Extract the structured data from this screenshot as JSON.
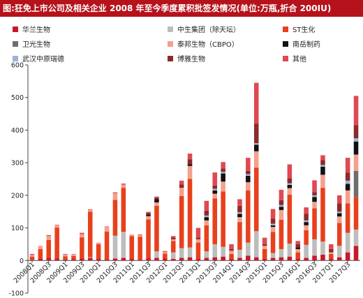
{
  "title": "图:狂免上市公司及相关企业 2008 年至今季度累积批签发情况(单位:万瓶,折合 200IU)",
  "colors": {
    "header_bg": "#b5121b"
  },
  "chart_data": {
    "type": "bar",
    "stacked": true,
    "title": "",
    "xlabel": "",
    "ylabel": "",
    "ylim": [
      -100,
      600
    ],
    "yticks": [
      -100,
      0,
      100,
      200,
      300,
      400,
      500,
      600
    ],
    "grid": false,
    "legend_position": "top",
    "categories": [
      "2008Q1",
      "2008Q2",
      "2008Q3",
      "2008Q4",
      "2009Q1",
      "2009Q2",
      "2009Q3",
      "2009Q4",
      "2010Q1",
      "2010Q2",
      "2010Q3",
      "2010Q4",
      "2011Q1",
      "2011Q2",
      "2011Q3",
      "2011Q4",
      "2012Q1",
      "2012Q2",
      "2012Q3",
      "2012Q4",
      "2013Q1",
      "2013Q2",
      "2013Q3",
      "2013Q4",
      "2014Q1",
      "2014Q2",
      "2014Q3",
      "2014Q4",
      "2015Q1",
      "2015Q2",
      "2015Q3",
      "2015Q4",
      "2016Q1",
      "2016Q2",
      "2016Q3",
      "2016Q4",
      "2017Q1",
      "2017Q2",
      "2017Q3",
      "2017Q4"
    ],
    "xtick_labels": [
      "2008Q1",
      "2008Q3",
      "2009Q1",
      "2009Q3",
      "2010Q1",
      "2010Q3",
      "2011Q1",
      "2011Q3",
      "2012Q1",
      "2012Q3",
      "2013Q1",
      "2013Q3",
      "2014Q1",
      "2014Q3",
      "2015Q1",
      "2015Q3",
      "2016Q1",
      "2016Q3",
      "2017Q1",
      "2017Q3"
    ],
    "series": [
      {
        "name": "华兰生物",
        "color": "#c8182a",
        "values": [
          2,
          5,
          8,
          6,
          3,
          4,
          6,
          8,
          5,
          4,
          6,
          8,
          5,
          3,
          6,
          8,
          6,
          5,
          8,
          10,
          5,
          8,
          10,
          12,
          5,
          8,
          15,
          10,
          5,
          8,
          10,
          12,
          5,
          8,
          15,
          18,
          5,
          10,
          25,
          45
        ]
      },
      {
        "name": "中生集团（除天坛）",
        "color": "#bdbdbd",
        "values": [
          0,
          0,
          0,
          0,
          0,
          0,
          0,
          2,
          0,
          0,
          70,
          80,
          0,
          0,
          0,
          20,
          0,
          20,
          30,
          30,
          0,
          20,
          40,
          30,
          0,
          25,
          40,
          80,
          0,
          15,
          25,
          40,
          0,
          40,
          50,
          40,
          0,
          35,
          60,
          50
        ]
      },
      {
        "name": "ST生化",
        "color": "#e8401c",
        "values": [
          10,
          30,
          55,
          95,
          10,
          10,
          65,
          140,
          45,
          85,
          110,
          135,
          70,
          70,
          120,
          140,
          15,
          35,
          160,
          210,
          50,
          80,
          140,
          170,
          15,
          85,
          160,
          195,
          30,
          65,
          90,
          150,
          20,
          45,
          95,
          165,
          15,
          70,
          90,
          100
        ]
      },
      {
        "name": "卫光生物",
        "color": "#6e6e6e",
        "values": [
          0,
          0,
          0,
          0,
          0,
          0,
          0,
          0,
          0,
          0,
          0,
          0,
          0,
          0,
          0,
          0,
          0,
          0,
          0,
          0,
          0,
          0,
          0,
          0,
          0,
          0,
          0,
          0,
          0,
          0,
          0,
          0,
          0,
          0,
          0,
          0,
          0,
          0,
          0,
          80
        ]
      },
      {
        "name": "泰邦生物（CBPO）",
        "color": "#f5a08c",
        "values": [
          5,
          10,
          12,
          8,
          5,
          5,
          10,
          5,
          5,
          15,
          20,
          10,
          5,
          5,
          10,
          10,
          5,
          5,
          25,
          40,
          10,
          15,
          15,
          30,
          10,
          15,
          25,
          50,
          10,
          15,
          30,
          20,
          10,
          15,
          20,
          40,
          5,
          20,
          40,
          50
        ]
      },
      {
        "name": "南岳制药",
        "color": "#111111",
        "values": [
          0,
          0,
          0,
          0,
          0,
          0,
          0,
          0,
          0,
          0,
          0,
          0,
          0,
          0,
          5,
          10,
          0,
          0,
          0,
          5,
          0,
          10,
          10,
          25,
          0,
          10,
          20,
          20,
          0,
          5,
          10,
          10,
          5,
          10,
          15,
          25,
          0,
          10,
          20,
          40
        ]
      },
      {
        "name": "武汉中原瑞德",
        "color": "#9db3da",
        "values": [
          0,
          0,
          0,
          0,
          0,
          0,
          0,
          0,
          0,
          0,
          0,
          0,
          0,
          0,
          0,
          0,
          0,
          0,
          0,
          0,
          0,
          5,
          5,
          5,
          0,
          5,
          5,
          5,
          0,
          5,
          5,
          5,
          0,
          5,
          5,
          5,
          0,
          5,
          10,
          10
        ]
      },
      {
        "name": "博雅生物",
        "color": "#8c2a2a",
        "values": [
          0,
          0,
          0,
          0,
          0,
          0,
          0,
          0,
          0,
          0,
          0,
          0,
          0,
          0,
          5,
          5,
          0,
          5,
          10,
          15,
          5,
          15,
          10,
          10,
          5,
          20,
          10,
          60,
          5,
          15,
          15,
          15,
          10,
          20,
          10,
          15,
          10,
          25,
          25,
          40
        ]
      },
      {
        "name": "其他",
        "color": "#e04852",
        "values": [
          3,
          0,
          3,
          1,
          2,
          1,
          4,
          2,
          0,
          1,
          3,
          3,
          0,
          2,
          3,
          3,
          3,
          5,
          12,
          18,
          30,
          30,
          40,
          20,
          15,
          20,
          40,
          125,
          20,
          30,
          32,
          43,
          10,
          20,
          36,
          15,
          15,
          25,
          45,
          90
        ]
      }
    ]
  }
}
